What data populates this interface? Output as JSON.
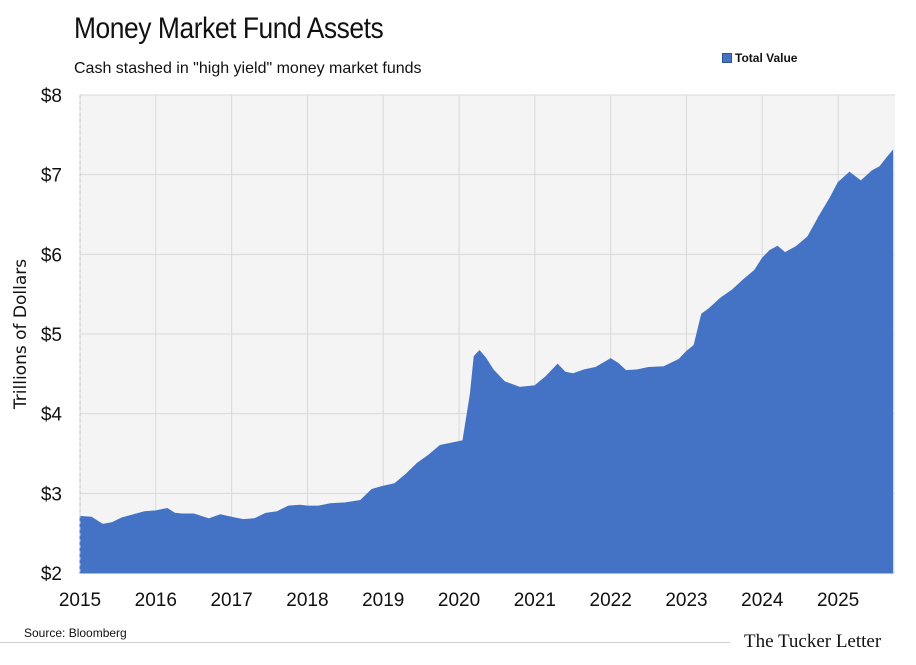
{
  "chart_data": {
    "type": "area",
    "title": "Money Market Fund Assets",
    "subtitle": "Cash stashed in \"high yield\" money market funds",
    "xlabel": "",
    "ylabel": "Trillions of Dollars",
    "ylim": [
      2,
      8
    ],
    "xlim": [
      2015.0,
      2025.75
    ],
    "y_tick_labels": [
      "$2",
      "$3",
      "$4",
      "$5",
      "$6",
      "$7",
      "$8"
    ],
    "y_tick_values": [
      2,
      3,
      4,
      5,
      6,
      7,
      8
    ],
    "x_tick_labels": [
      "2015",
      "2016",
      "2017",
      "2018",
      "2019",
      "2020",
      "2021",
      "2022",
      "2023",
      "2024",
      "2025"
    ],
    "x_tick_values": [
      2015,
      2016,
      2017,
      2018,
      2019,
      2020,
      2021,
      2022,
      2023,
      2024,
      2025
    ],
    "grid": true,
    "legend_position": "top-right",
    "series": [
      {
        "name": "Total Value",
        "color": "#4472c4",
        "x": [
          2015.0,
          2015.15,
          2015.3,
          2015.42,
          2015.55,
          2015.7,
          2015.85,
          2016.0,
          2016.15,
          2016.25,
          2016.35,
          2016.5,
          2016.7,
          2016.85,
          2017.0,
          2017.15,
          2017.3,
          2017.45,
          2017.6,
          2017.75,
          2017.9,
          2018.0,
          2018.15,
          2018.3,
          2018.5,
          2018.7,
          2018.85,
          2019.0,
          2019.15,
          2019.3,
          2019.45,
          2019.6,
          2019.75,
          2019.9,
          2020.05,
          2020.15,
          2020.2,
          2020.27,
          2020.35,
          2020.45,
          2020.6,
          2020.8,
          2021.0,
          2021.15,
          2021.3,
          2021.4,
          2021.5,
          2021.65,
          2021.8,
          2022.0,
          2022.1,
          2022.2,
          2022.35,
          2022.5,
          2022.7,
          2022.9,
          2023.0,
          2023.1,
          2023.2,
          2023.3,
          2023.45,
          2023.6,
          2023.75,
          2023.9,
          2024.0,
          2024.1,
          2024.2,
          2024.3,
          2024.45,
          2024.6,
          2024.75,
          2024.9,
          2025.0,
          2025.15,
          2025.3,
          2025.45,
          2025.55,
          2025.65,
          2025.72
        ],
        "values": [
          2.71,
          2.7,
          2.61,
          2.63,
          2.69,
          2.73,
          2.77,
          2.78,
          2.81,
          2.75,
          2.74,
          2.74,
          2.68,
          2.73,
          2.7,
          2.67,
          2.68,
          2.75,
          2.77,
          2.84,
          2.85,
          2.84,
          2.84,
          2.87,
          2.88,
          2.91,
          3.05,
          3.09,
          3.12,
          3.24,
          3.38,
          3.48,
          3.6,
          3.63,
          3.66,
          4.25,
          4.72,
          4.79,
          4.7,
          4.55,
          4.4,
          4.33,
          4.35,
          4.47,
          4.62,
          4.52,
          4.5,
          4.55,
          4.58,
          4.69,
          4.63,
          4.54,
          4.55,
          4.58,
          4.59,
          4.68,
          4.78,
          4.86,
          5.25,
          5.32,
          5.45,
          5.55,
          5.68,
          5.8,
          5.95,
          6.05,
          6.1,
          6.02,
          6.1,
          6.22,
          6.48,
          6.72,
          6.9,
          7.03,
          6.92,
          7.05,
          7.1,
          7.22,
          7.3
        ]
      }
    ]
  },
  "legend": {
    "label": "Total Value"
  },
  "source": "Source: Bloomberg",
  "brand": "The Tucker Letter"
}
